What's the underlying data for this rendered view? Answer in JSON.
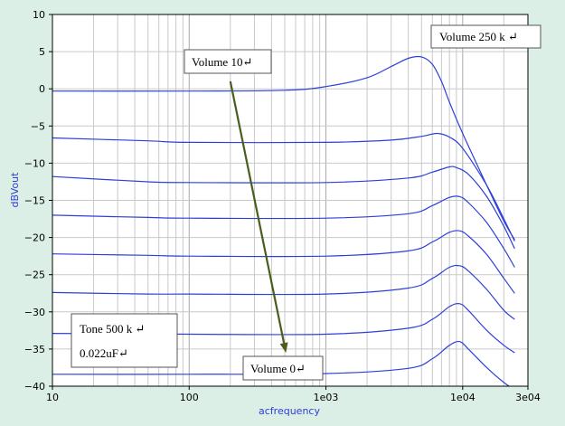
{
  "chart_data": {
    "type": "line",
    "xlabel": "acfrequency",
    "ylabel": "dBVout",
    "xscale": "log",
    "xlim": [
      10,
      30000
    ],
    "ylim": [
      -40,
      10
    ],
    "grid": true,
    "x_ticks": [
      {
        "value": 10,
        "label": "10"
      },
      {
        "value": 100,
        "label": "100"
      },
      {
        "value": 1000,
        "label": "1e03"
      },
      {
        "value": 10000,
        "label": "1e04"
      },
      {
        "value": 30000,
        "label": "3e04"
      }
    ],
    "y_ticks": [
      {
        "value": 10,
        "label": "10"
      },
      {
        "value": 5,
        "label": "5"
      },
      {
        "value": 0,
        "label": "0"
      },
      {
        "value": -5,
        "label": "−5"
      },
      {
        "value": -10,
        "label": "−10"
      },
      {
        "value": -15,
        "label": "−15"
      },
      {
        "value": -20,
        "label": "−20"
      },
      {
        "value": -25,
        "label": "−25"
      },
      {
        "value": -30,
        "label": "−30"
      },
      {
        "value": -35,
        "label": "−35"
      },
      {
        "value": -40,
        "label": "−40"
      }
    ],
    "series": [
      {
        "points": [
          [
            10,
            -0.3
          ],
          [
            100,
            -0.3
          ],
          [
            500,
            -0.2
          ],
          [
            1000,
            0.3
          ],
          [
            2000,
            1.5
          ],
          [
            3000,
            3.0
          ],
          [
            4000,
            4.1
          ],
          [
            5000,
            4.3
          ],
          [
            6000,
            3.3
          ],
          [
            7000,
            1.0
          ],
          [
            8000,
            -1.8
          ],
          [
            10000,
            -6.0
          ],
          [
            15000,
            -13.0
          ],
          [
            20000,
            -17.8
          ],
          [
            24000,
            -20.3
          ]
        ]
      },
      {
        "points": [
          [
            10,
            -6.6
          ],
          [
            50,
            -7.0
          ],
          [
            100,
            -7.2
          ],
          [
            1000,
            -7.2
          ],
          [
            3000,
            -6.9
          ],
          [
            5000,
            -6.4
          ],
          [
            6500,
            -6.0
          ],
          [
            8000,
            -6.5
          ],
          [
            10000,
            -8.0
          ],
          [
            15000,
            -13.0
          ],
          [
            20000,
            -17.5
          ],
          [
            24000,
            -20.5
          ]
        ]
      },
      {
        "points": [
          [
            10,
            -11.8
          ],
          [
            50,
            -12.5
          ],
          [
            100,
            -12.6
          ],
          [
            1000,
            -12.6
          ],
          [
            4000,
            -12.0
          ],
          [
            6000,
            -11.2
          ],
          [
            8000,
            -10.5
          ],
          [
            9000,
            -10.6
          ],
          [
            11000,
            -11.5
          ],
          [
            15000,
            -14.5
          ],
          [
            20000,
            -18.5
          ],
          [
            24000,
            -21.5
          ]
        ]
      },
      {
        "points": [
          [
            10,
            -17.0
          ],
          [
            50,
            -17.3
          ],
          [
            100,
            -17.4
          ],
          [
            1000,
            -17.4
          ],
          [
            4000,
            -16.8
          ],
          [
            6000,
            -15.7
          ],
          [
            8000,
            -14.6
          ],
          [
            9500,
            -14.5
          ],
          [
            11000,
            -15.3
          ],
          [
            15000,
            -18.0
          ],
          [
            20000,
            -21.5
          ],
          [
            24000,
            -24.0
          ]
        ]
      },
      {
        "points": [
          [
            10,
            -22.2
          ],
          [
            50,
            -22.4
          ],
          [
            100,
            -22.5
          ],
          [
            1000,
            -22.5
          ],
          [
            4000,
            -21.8
          ],
          [
            6000,
            -20.6
          ],
          [
            8000,
            -19.3
          ],
          [
            9500,
            -19.1
          ],
          [
            11000,
            -19.8
          ],
          [
            15000,
            -22.3
          ],
          [
            20000,
            -25.5
          ],
          [
            24000,
            -27.5
          ]
        ]
      },
      {
        "points": [
          [
            10,
            -27.4
          ],
          [
            50,
            -27.6
          ],
          [
            100,
            -27.6
          ],
          [
            1000,
            -27.6
          ],
          [
            4000,
            -26.8
          ],
          [
            6000,
            -25.5
          ],
          [
            8000,
            -24.0
          ],
          [
            9500,
            -23.8
          ],
          [
            11000,
            -24.5
          ],
          [
            15000,
            -27.0
          ],
          [
            20000,
            -29.8
          ],
          [
            24000,
            -31.0
          ]
        ]
      },
      {
        "points": [
          [
            10,
            -32.9
          ],
          [
            100,
            -33.0
          ],
          [
            1000,
            -33.0
          ],
          [
            4000,
            -32.2
          ],
          [
            6000,
            -31.0
          ],
          [
            8000,
            -29.3
          ],
          [
            9500,
            -28.9
          ],
          [
            11000,
            -29.8
          ],
          [
            15000,
            -32.5
          ],
          [
            20000,
            -34.5
          ],
          [
            24000,
            -35.5
          ]
        ]
      },
      {
        "points": [
          [
            10,
            -38.4
          ],
          [
            100,
            -38.4
          ],
          [
            1000,
            -38.3
          ],
          [
            4000,
            -37.6
          ],
          [
            6000,
            -36.3
          ],
          [
            8000,
            -34.5
          ],
          [
            9500,
            -34.0
          ],
          [
            11000,
            -35.0
          ],
          [
            15000,
            -37.5
          ],
          [
            20000,
            -39.5
          ],
          [
            24000,
            -40.5
          ]
        ]
      }
    ],
    "annotations": [
      {
        "text": "Volume 10↵",
        "arrow_from": [
          200,
          1.0
        ],
        "arrow_to": [
          510,
          -35.5
        ]
      },
      {
        "text": "Volume 250 k ↵"
      },
      {
        "text": "Volume 0↵"
      },
      {
        "text_lines": [
          "Tone 500 k ↵",
          "0.022uF↵"
        ]
      }
    ]
  },
  "colors": {
    "background": "#dcefe7",
    "plot_bg": "#ffffff",
    "grid": "#c9c9c9",
    "series": "#2e3fd8",
    "axis_label": "#2d3dd6",
    "arrow": "#4a5e1c"
  }
}
